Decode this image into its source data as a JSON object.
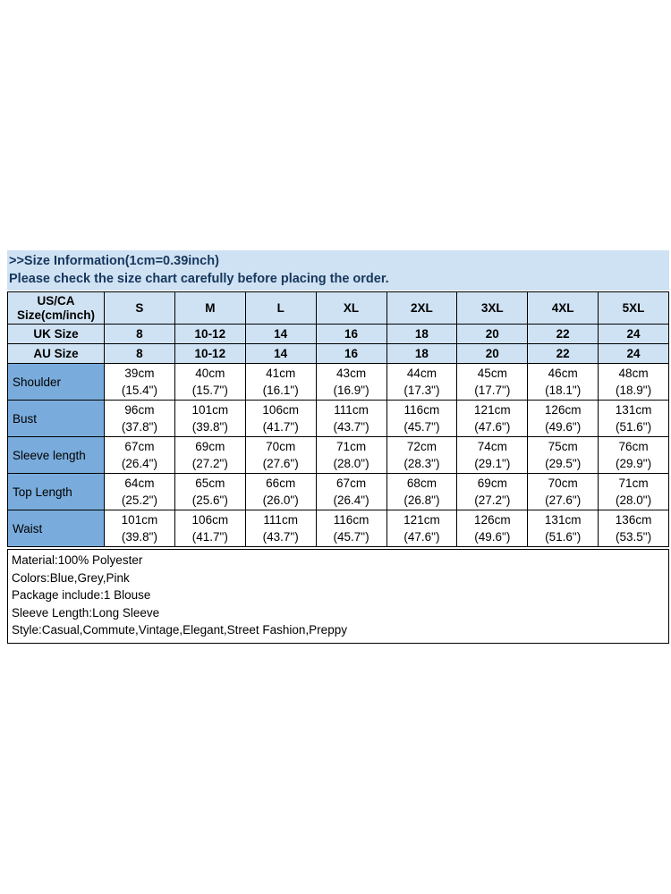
{
  "banner": {
    "line1": ">>Size Information(1cm=0.39inch)",
    "line2": "Please check the size chart carefully before placing the order."
  },
  "table": {
    "corner_header_line1": "US/CA",
    "corner_header_line2": "Size(cm/inch)",
    "size_columns": [
      "S",
      "M",
      "L",
      "XL",
      "2XL",
      "3XL",
      "4XL",
      "5XL"
    ],
    "size_rows": [
      {
        "label": "UK Size",
        "values": [
          "8",
          "10-12",
          "14",
          "16",
          "18",
          "20",
          "22",
          "24"
        ]
      },
      {
        "label": "AU Size",
        "values": [
          "8",
          "10-12",
          "14",
          "16",
          "18",
          "20",
          "22",
          "24"
        ]
      }
    ],
    "measurement_rows": [
      {
        "label": "Shoulder",
        "cm": [
          "39cm",
          "40cm",
          "41cm",
          "43cm",
          "44cm",
          "45cm",
          "46cm",
          "48cm"
        ],
        "inch": [
          "(15.4\")",
          "(15.7\")",
          "(16.1\")",
          "(16.9\")",
          "(17.3\")",
          "(17.7\")",
          "(18.1\")",
          "(18.9\")"
        ]
      },
      {
        "label": "Bust",
        "cm": [
          "96cm",
          "101cm",
          "106cm",
          "111cm",
          "116cm",
          "121cm",
          "126cm",
          "131cm"
        ],
        "inch": [
          "(37.8\")",
          "(39.8\")",
          "(41.7\")",
          "(43.7\")",
          "(45.7\")",
          "(47.6\")",
          "(49.6\")",
          "(51.6\")"
        ]
      },
      {
        "label": "Sleeve length",
        "cm": [
          "67cm",
          "69cm",
          "70cm",
          "71cm",
          "72cm",
          "74cm",
          "75cm",
          "76cm"
        ],
        "inch": [
          "(26.4\")",
          "(27.2\")",
          "(27.6\")",
          "(28.0\")",
          "(28.3\")",
          "(29.1\")",
          "(29.5\")",
          "(29.9\")"
        ]
      },
      {
        "label": "Top Length",
        "cm": [
          "64cm",
          "65cm",
          "66cm",
          "67cm",
          "68cm",
          "69cm",
          "70cm",
          "71cm"
        ],
        "inch": [
          "(25.2\")",
          "(25.6\")",
          "(26.0\")",
          "(26.4\")",
          "(26.8\")",
          "(27.2\")",
          "(27.6\")",
          "(28.0\")"
        ]
      },
      {
        "label": "Waist",
        "cm": [
          "101cm",
          "106cm",
          "111cm",
          "116cm",
          "121cm",
          "126cm",
          "131cm",
          "136cm"
        ],
        "inch": [
          "(39.8\")",
          "(41.7\")",
          "(43.7\")",
          "(45.7\")",
          "(47.6\")",
          "(49.6\")",
          "(51.6\")",
          "(53.5\")"
        ]
      }
    ]
  },
  "details": {
    "lines": [
      "Material:100% Polyester",
      "Colors:Blue,Grey,Pink",
      "Package include:1 Blouse",
      "Sleeve Length:Long Sleeve",
      "Style:Casual,Commute,Vintage,Elegant,Street Fashion,Preppy"
    ]
  },
  "colors": {
    "banner_bg": "#cfe2f3",
    "banner_text": "#17375d",
    "header_row_bg": "#cfe2f3",
    "label_column_bg": "#79acdc",
    "border": "#000000"
  }
}
